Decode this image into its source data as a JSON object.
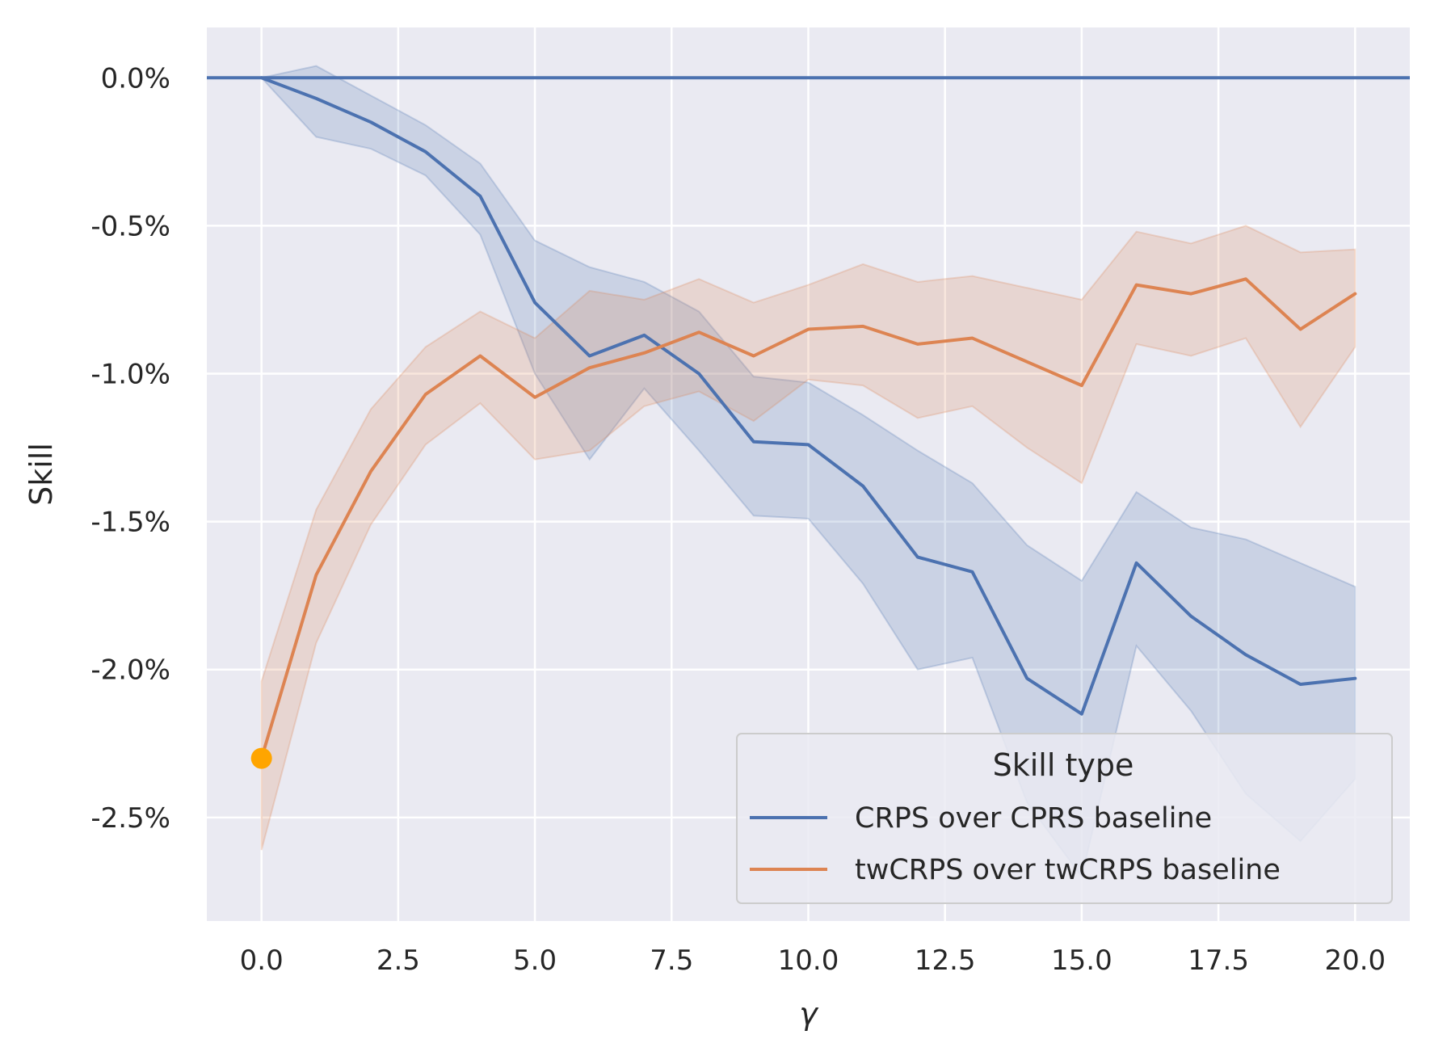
{
  "chart_data": {
    "type": "line",
    "xlabel": "γ",
    "ylabel": "Skill",
    "xlim": [
      -1.0,
      21.0
    ],
    "ylim": [
      -2.85,
      0.17
    ],
    "x_ticks": [
      0.0,
      2.5,
      5.0,
      7.5,
      10.0,
      12.5,
      15.0,
      17.5,
      20.0
    ],
    "x_tick_labels": [
      "0.0",
      "2.5",
      "5.0",
      "7.5",
      "10.0",
      "12.5",
      "15.0",
      "17.5",
      "20.0"
    ],
    "y_ticks": [
      0.0,
      -0.5,
      -1.0,
      -1.5,
      -2.0,
      -2.5
    ],
    "y_tick_labels": [
      "0.0%",
      "-0.5%",
      "-1.0%",
      "-1.5%",
      "-2.0%",
      "-2.5%"
    ],
    "grid": true,
    "background": "#eaeaf2",
    "legend": {
      "title": "Skill type",
      "placement": "bottom-right"
    },
    "reference_line": {
      "y": 0.0,
      "color": "#4c72b0"
    },
    "x": [
      0,
      1,
      2,
      3,
      4,
      5,
      6,
      7,
      8,
      9,
      10,
      11,
      12,
      13,
      14,
      15,
      16,
      17,
      18,
      19,
      20
    ],
    "series": [
      {
        "name": "CRPS over CPRS baseline",
        "color": "#4c72b0",
        "values": [
          0.0,
          -0.07,
          -0.15,
          -0.25,
          -0.4,
          -0.76,
          -0.94,
          -0.87,
          -1.0,
          -1.23,
          -1.24,
          -1.38,
          -1.62,
          -1.67,
          -2.03,
          -2.15,
          -1.64,
          -1.82,
          -1.95,
          -2.05,
          -2.03
        ],
        "lower": [
          0.0,
          -0.2,
          -0.24,
          -0.33,
          -0.53,
          -1.0,
          -1.29,
          -1.05,
          -1.26,
          -1.48,
          -1.49,
          -1.71,
          -2.0,
          -1.96,
          -2.45,
          -2.7,
          -1.92,
          -2.14,
          -2.42,
          -2.58,
          -2.37
        ],
        "upper": [
          0.0,
          0.04,
          -0.06,
          -0.16,
          -0.29,
          -0.55,
          -0.64,
          -0.69,
          -0.79,
          -1.01,
          -1.03,
          -1.14,
          -1.26,
          -1.37,
          -1.58,
          -1.7,
          -1.4,
          -1.52,
          -1.56,
          -1.64,
          -1.72
        ]
      },
      {
        "name": "twCRPS over twCRPS baseline",
        "color": "#dd8452",
        "values": [
          -2.3,
          -1.68,
          -1.33,
          -1.07,
          -0.94,
          -1.08,
          -0.98,
          -0.93,
          -0.86,
          -0.94,
          -0.85,
          -0.84,
          -0.9,
          -0.88,
          -0.96,
          -1.04,
          -0.7,
          -0.73,
          -0.68,
          -0.85,
          -0.73
        ],
        "lower": [
          -2.61,
          -1.91,
          -1.51,
          -1.24,
          -1.1,
          -1.29,
          -1.26,
          -1.11,
          -1.06,
          -1.16,
          -1.02,
          -1.04,
          -1.15,
          -1.11,
          -1.25,
          -1.37,
          -0.9,
          -0.94,
          -0.88,
          -1.18,
          -0.91
        ],
        "upper": [
          -2.04,
          -1.46,
          -1.12,
          -0.91,
          -0.79,
          -0.88,
          -0.72,
          -0.75,
          -0.68,
          -0.76,
          -0.7,
          -0.63,
          -0.69,
          -0.67,
          -0.71,
          -0.75,
          -0.52,
          -0.56,
          -0.5,
          -0.59,
          -0.58
        ]
      }
    ],
    "highlight_point": {
      "x": 0,
      "y": -2.3,
      "color": "#ffa500"
    }
  }
}
